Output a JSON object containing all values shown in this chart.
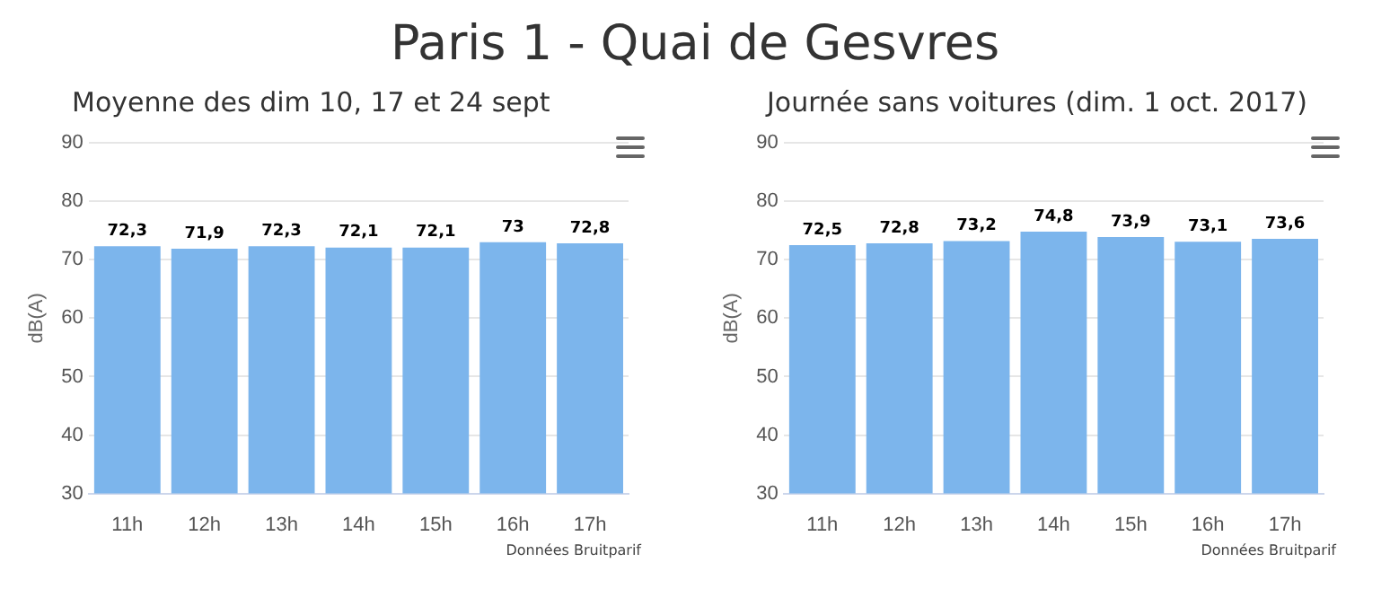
{
  "chart_data": [
    {
      "type": "bar",
      "title": "Paris 1 - Quai de Gesvres",
      "subtitle": "Moyenne des dim 10, 17 et 24 sept",
      "ylabel": "dB(A)",
      "categories": [
        "11h",
        "12h",
        "13h",
        "14h",
        "15h",
        "16h",
        "17h"
      ],
      "values": [
        72.3,
        71.9,
        72.3,
        72.1,
        72.1,
        73,
        72.8
      ],
      "value_labels": [
        "72,3",
        "71,9",
        "72,3",
        "72,1",
        "72,1",
        "73",
        "72,8"
      ],
      "color": "#7cb5ec",
      "ylim": [
        30,
        90
      ],
      "yticks": [
        30,
        40,
        50,
        60,
        70,
        80,
        90
      ],
      "grid": "y",
      "legend": false,
      "annotations": [
        "Données Bruitparif"
      ]
    },
    {
      "type": "bar",
      "subtitle": "Journée sans voitures (dim. 1 oct. 2017)",
      "ylabel": "dB(A)",
      "categories": [
        "11h",
        "12h",
        "13h",
        "14h",
        "15h",
        "16h",
        "17h"
      ],
      "values": [
        72.5,
        72.8,
        73.2,
        74.8,
        73.9,
        73.1,
        73.6
      ],
      "value_labels": [
        "72,5",
        "72,8",
        "73,2",
        "74,8",
        "73,9",
        "73,1",
        "73,6"
      ],
      "color": "#7cb5ec",
      "ylim": [
        30,
        90
      ],
      "yticks": [
        30,
        40,
        50,
        60,
        70,
        80,
        90
      ],
      "grid": "y",
      "legend": false,
      "annotations": [
        "Données Bruitparif"
      ]
    }
  ]
}
